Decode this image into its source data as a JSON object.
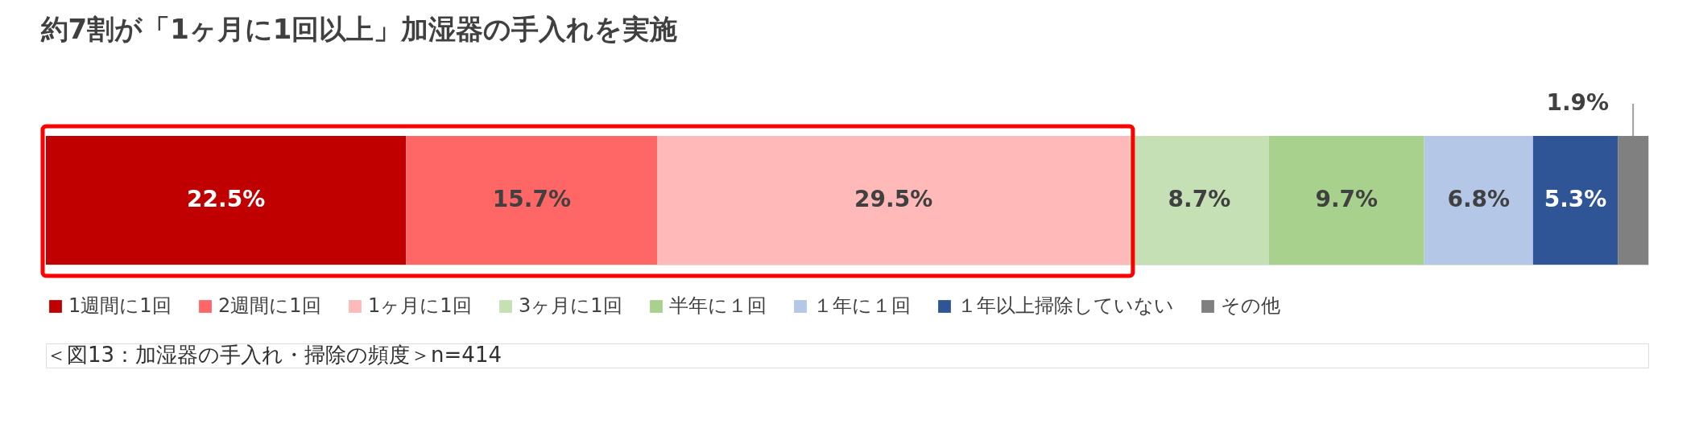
{
  "chart_data": {
    "type": "bar",
    "orientation": "horizontal",
    "stacked": true,
    "title": "約7割が「1ヶ月に1回以上」加湿器の手入れを実施",
    "categories": [
      null
    ],
    "series": [
      {
        "name": "1週間に1回",
        "color": "#c00000",
        "values": [
          22.5
        ],
        "value_labels": [
          "22.5%"
        ]
      },
      {
        "name": "2週間に1回",
        "color": "#ff6666",
        "values": [
          15.7
        ],
        "value_labels": [
          "15.7%"
        ]
      },
      {
        "name": "1ヶ月に1回",
        "color": "#ffb9b9",
        "values": [
          29.5
        ],
        "value_labels": [
          "29.5%"
        ]
      },
      {
        "name": "3ヶ月に1回",
        "color": "#c5e0b4",
        "values": [
          8.7
        ],
        "value_labels": [
          "8.7%"
        ]
      },
      {
        "name": "半年に１回",
        "color": "#a9d18e",
        "values": [
          9.7
        ],
        "value_labels": [
          "9.7%"
        ]
      },
      {
        "name": "１年に１回",
        "color": "#b4c7e7",
        "values": [
          6.8
        ],
        "value_labels": [
          "6.8%"
        ]
      },
      {
        "name": "１年以上掃除していない",
        "color": "#2f5597",
        "values": [
          5.3
        ],
        "value_labels": [
          "5.3%"
        ]
      },
      {
        "name": "その他",
        "color": "#808080",
        "values": [
          1.9
        ],
        "value_labels": [
          "1.9%"
        ]
      }
    ],
    "legend": "bottom",
    "annotations": [
      "＜図13：加湿器の手入れ・掃除の頻度＞n=414"
    ]
  }
}
